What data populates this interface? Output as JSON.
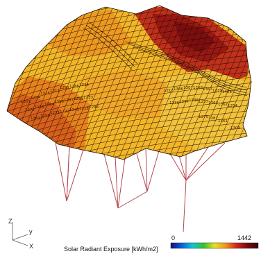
{
  "legend": {
    "title": "Solar Radiant Exposure [kWh/m2]",
    "min": "0",
    "max": "1442",
    "colors": [
      "#1a0a7a",
      "#0a5fe0",
      "#10c6d8",
      "#2fc22b",
      "#e8e020",
      "#f09a18",
      "#d2281c",
      "#7a0a10",
      "#3a0008"
    ]
  },
  "axes": {
    "z": "Z",
    "y": "y",
    "x": "X"
  },
  "cell_values": [
    "1301",
    "1294",
    "1315",
    "1311",
    "1291",
    "1285",
    "1334",
    "1271",
    "1315",
    "1264",
    "1359",
    "1307",
    "1291",
    "1233",
    "1381",
    "1298",
    "1271",
    "1222",
    "1343",
    "1216",
    "1298",
    "1213",
    "1336",
    "1307",
    "1268",
    "1367",
    "1379",
    "1401",
    "1336",
    "1377",
    "1338",
    "1257",
    "1393",
    "1362",
    "1254",
    "1375",
    "1387",
    "1361",
    "1309"
  ],
  "colors": {
    "peak": "#a01c14",
    "high": "#c8401a",
    "mid": "#e8821c",
    "low": "#f2b628",
    "lowest": "#f4cf3a",
    "grid": "#1a0d08",
    "support": "#b4464e"
  }
}
